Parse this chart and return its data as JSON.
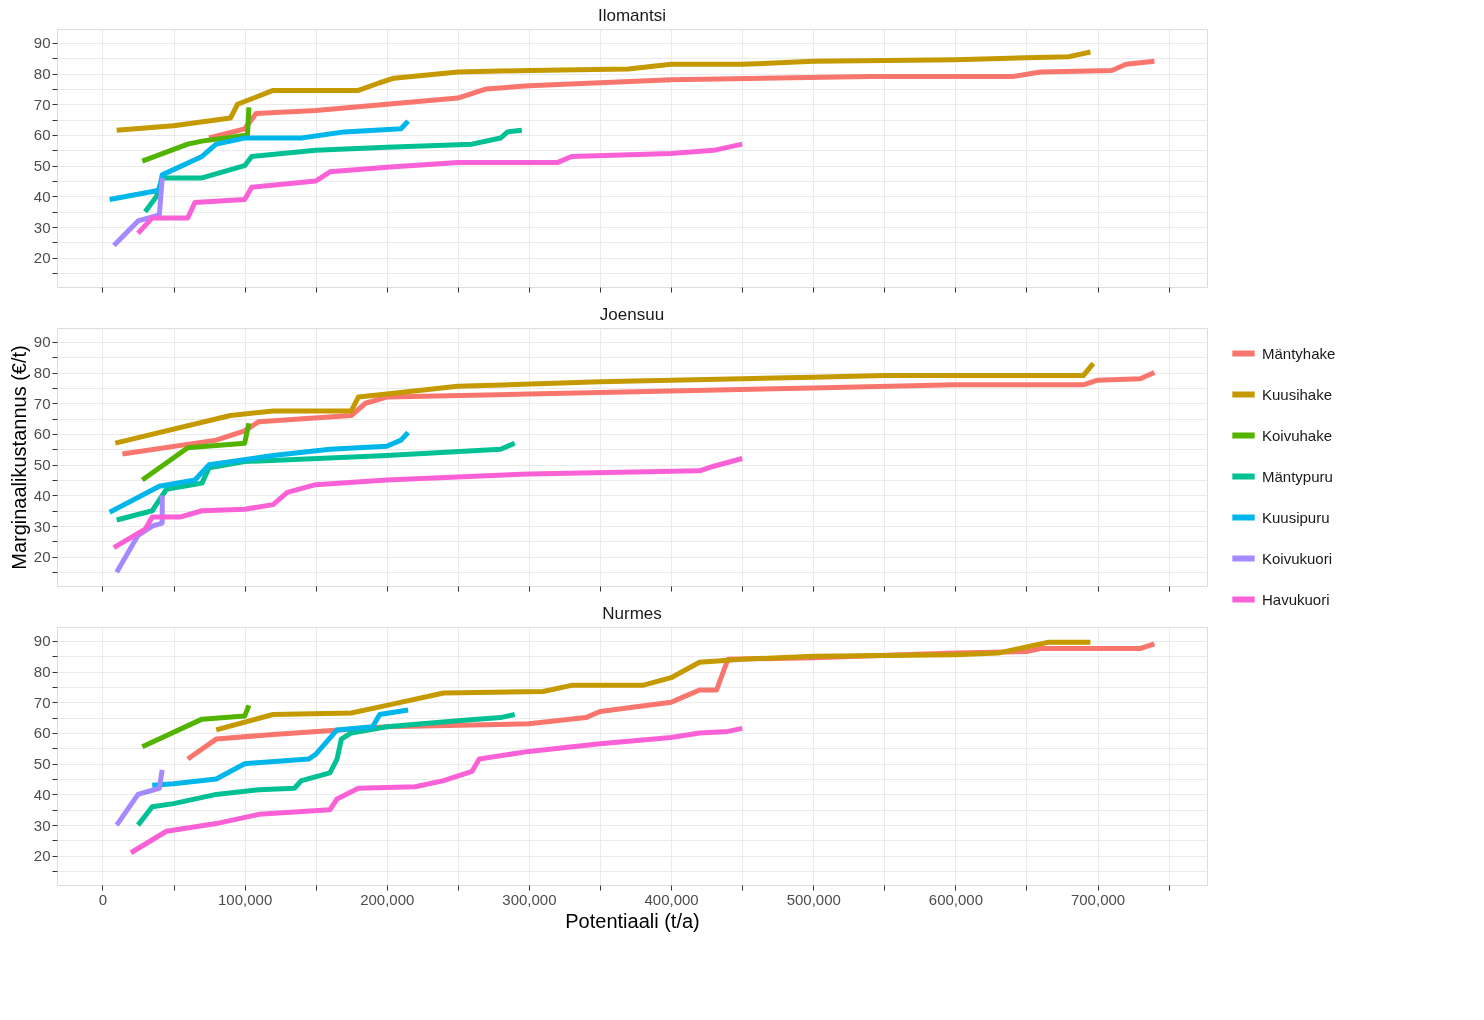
{
  "chart_data": [
    {
      "type": "line",
      "title": "Ilomantsi",
      "tick_labels": "y",
      "grid": true,
      "legend": "right",
      "line_style": "solid",
      "xlim": [
        -32000,
        777000
      ],
      "ylim": [
        10.5,
        94.5
      ],
      "xticks": [
        0,
        50000,
        100000,
        150000,
        200000,
        250000,
        300000,
        350000,
        400000,
        450000,
        500000,
        550000,
        600000,
        650000,
        700000,
        750000
      ],
      "yticks": [
        {
          "value": 15,
          "label": null
        },
        20,
        {
          "value": 25,
          "label": null
        },
        30,
        {
          "value": 35,
          "label": null
        },
        40,
        {
          "value": 45,
          "label": null
        },
        50,
        {
          "value": 55,
          "label": null
        },
        60,
        {
          "value": 65,
          "label": null
        },
        70,
        {
          "value": 75,
          "label": null
        },
        80,
        {
          "value": 85,
          "label": null
        },
        90
      ],
      "series": [
        {
          "name": "Mäntyhake",
          "color": "#f8766d",
          "x": [
            75000,
            100000,
            108000,
            150000,
            200000,
            250000,
            270000,
            300000,
            400000,
            540000,
            640000,
            660000,
            710000,
            720000,
            740000
          ],
          "values": [
            59,
            62,
            67,
            68,
            70,
            72,
            75,
            76,
            78,
            79,
            79,
            80.5,
            81,
            83,
            84
          ]
        },
        {
          "name": "Kuusihake",
          "color": "#c49a00",
          "x": [
            10000,
            50000,
            90000,
            95000,
            120000,
            180000,
            195000,
            205000,
            250000,
            300000,
            370000,
            400000,
            450000,
            500000,
            600000,
            680000,
            695000
          ],
          "values": [
            61.5,
            63,
            65.5,
            70,
            74.5,
            74.5,
            77,
            78.5,
            80.5,
            81,
            81.5,
            83,
            83,
            84,
            84.5,
            85.5,
            87
          ]
        },
        {
          "name": "Koivuhake",
          "color": "#53b400",
          "x": [
            28000,
            60000,
            70000,
            102000,
            103000
          ],
          "values": [
            51.5,
            57,
            58,
            60,
            69
          ]
        },
        {
          "name": "Mäntypuru",
          "color": "#00c094",
          "x": [
            30000,
            38000,
            42000,
            70000,
            100000,
            105000,
            150000,
            200000,
            260000,
            280000,
            285000,
            295000
          ],
          "values": [
            35,
            40,
            46,
            46,
            50,
            53,
            55,
            56,
            57,
            59,
            61,
            61.5
          ]
        },
        {
          "name": "Kuusipuru",
          "color": "#00b6eb",
          "x": [
            5000,
            40000,
            42000,
            70000,
            80000,
            100000,
            140000,
            170000,
            210000,
            215000
          ],
          "values": [
            39,
            42,
            47,
            53,
            57,
            59,
            59,
            61,
            62,
            64.5
          ]
        },
        {
          "name": "Koivukuori",
          "color": "#a58aff",
          "x": [
            8000,
            25000,
            40000,
            42000
          ],
          "values": [
            24,
            32,
            34,
            46
          ]
        },
        {
          "name": "Havukuori",
          "color": "#fb61d7",
          "x": [
            25000,
            35000,
            60000,
            65000,
            100000,
            105000,
            150000,
            160000,
            200000,
            250000,
            320000,
            330000,
            400000,
            430000,
            450000
          ],
          "values": [
            28,
            33,
            33,
            38,
            39,
            43,
            45,
            48,
            49.5,
            51,
            51,
            53,
            54,
            55,
            57
          ]
        }
      ]
    },
    {
      "type": "line",
      "title": "Joensuu",
      "ylabel": "Marginaalikustannus (€/t)",
      "tick_labels": "y",
      "grid": true,
      "line_style": "solid",
      "xlim": [
        -32000,
        777000
      ],
      "ylim": [
        10.5,
        94.5
      ],
      "xticks": [
        0,
        50000,
        100000,
        150000,
        200000,
        250000,
        300000,
        350000,
        400000,
        450000,
        500000,
        550000,
        600000,
        650000,
        700000,
        750000
      ],
      "yticks": [
        {
          "value": 15,
          "label": null
        },
        20,
        {
          "value": 25,
          "label": null
        },
        30,
        {
          "value": 35,
          "label": null
        },
        40,
        {
          "value": 45,
          "label": null
        },
        50,
        {
          "value": 55,
          "label": null
        },
        60,
        {
          "value": 65,
          "label": null
        },
        70,
        {
          "value": 75,
          "label": null
        },
        80,
        {
          "value": 85,
          "label": null
        },
        90
      ],
      "series": [
        {
          "color": "#f8766d",
          "x": [
            14000,
            80000,
            100000,
            110000,
            175000,
            185000,
            200000,
            300000,
            400000,
            500000,
            600000,
            690000,
            700000,
            730000,
            740000
          ],
          "values": [
            53.5,
            58,
            61,
            64,
            66,
            70,
            72,
            73,
            74,
            75,
            76,
            76,
            77.5,
            78,
            80
          ]
        },
        {
          "color": "#c49a00",
          "x": [
            9000,
            90000,
            120000,
            175000,
            180000,
            200000,
            250000,
            350000,
            400000,
            450000,
            500000,
            550000,
            690000,
            697000
          ],
          "values": [
            57,
            66,
            67.5,
            67.5,
            72,
            73,
            75.5,
            77,
            77.5,
            78,
            78.5,
            79,
            79,
            83
          ]
        },
        {
          "color": "#53b400",
          "x": [
            28000,
            60000,
            100000,
            103000
          ],
          "values": [
            45,
            55.5,
            57,
            63.5
          ]
        },
        {
          "color": "#00c094",
          "x": [
            10000,
            35000,
            45000,
            70000,
            75000,
            100000,
            200000,
            280000,
            290000
          ],
          "values": [
            32,
            35,
            42,
            44,
            49,
            51,
            53,
            55,
            57
          ]
        },
        {
          "color": "#00b6eb",
          "x": [
            5000,
            40000,
            65000,
            75000,
            120000,
            160000,
            200000,
            210000,
            215000
          ],
          "values": [
            34.5,
            43,
            45,
            50,
            53,
            55,
            56,
            58,
            60.5
          ]
        },
        {
          "color": "#a58aff",
          "x": [
            10000,
            25000,
            35000,
            42000,
            42000
          ],
          "values": [
            15,
            27,
            30,
            31,
            40
          ]
        },
        {
          "color": "#fb61d7",
          "x": [
            8000,
            30000,
            35000,
            55000,
            70000,
            100000,
            120000,
            130000,
            150000,
            200000,
            300000,
            420000,
            430000,
            450000
          ],
          "values": [
            23,
            29,
            33,
            33,
            35,
            35.5,
            37,
            41,
            43.5,
            45,
            47,
            48,
            49.5,
            52
          ]
        }
      ]
    },
    {
      "type": "line",
      "title": "Nurmes",
      "xlabel": "Potentiaali (t/a)",
      "grid": true,
      "line_style": "solid",
      "xlim": [
        -32000,
        777000
      ],
      "ylim": [
        10.5,
        94.5
      ],
      "xticks": [
        0,
        {
          "value": 50000,
          "label": null
        },
        {
          "value": 100000,
          "label": "100,000"
        },
        {
          "value": 150000,
          "label": null
        },
        {
          "value": 200000,
          "label": "200,000"
        },
        {
          "value": 250000,
          "label": null
        },
        {
          "value": 300000,
          "label": "300,000"
        },
        {
          "value": 350000,
          "label": null
        },
        {
          "value": 400000,
          "label": "400,000"
        },
        {
          "value": 450000,
          "label": null
        },
        {
          "value": 500000,
          "label": "500,000"
        },
        {
          "value": 550000,
          "label": null
        },
        {
          "value": 600000,
          "label": "600,000"
        },
        {
          "value": 650000,
          "label": null
        },
        {
          "value": 700000,
          "label": "700,000"
        },
        {
          "value": 750000,
          "label": null
        }
      ],
      "yticks": [
        {
          "value": 15,
          "label": null
        },
        20,
        {
          "value": 25,
          "label": null
        },
        30,
        {
          "value": 35,
          "label": null
        },
        40,
        {
          "value": 45,
          "label": null
        },
        50,
        {
          "value": 55,
          "label": null
        },
        60,
        {
          "value": 65,
          "label": null
        },
        70,
        {
          "value": 75,
          "label": null
        },
        80,
        {
          "value": 85,
          "label": null
        },
        90
      ],
      "series": [
        {
          "color": "#f8766d",
          "x": [
            60000,
            80000,
            120000,
            200000,
            300000,
            340000,
            350000,
            400000,
            410000,
            420000,
            432000,
            440000,
            500000,
            600000,
            650000,
            660000,
            730000,
            740000
          ],
          "values": [
            51.5,
            58,
            59.5,
            62,
            63,
            65,
            67,
            70,
            72,
            74,
            74,
            84,
            84.5,
            86,
            86.5,
            87.5,
            87.5,
            89
          ]
        },
        {
          "color": "#c49a00",
          "x": [
            80000,
            120000,
            175000,
            200000,
            240000,
            310000,
            330000,
            380000,
            400000,
            420000,
            450000,
            500000,
            600000,
            630000,
            650000,
            665000,
            695000
          ],
          "values": [
            61,
            66,
            66.5,
            69,
            73,
            73.5,
            75.5,
            75.5,
            78,
            83,
            84,
            85,
            85.5,
            86,
            88,
            89.5,
            89.5
          ]
        },
        {
          "color": "#53b400",
          "x": [
            28000,
            70000,
            100000,
            103000
          ],
          "values": [
            55.5,
            64.5,
            65.5,
            69
          ]
        },
        {
          "color": "#00c094",
          "x": [
            25000,
            35000,
            50000,
            80000,
            110000,
            135000,
            140000,
            160000,
            165000,
            168000,
            175000,
            200000,
            250000,
            280000,
            290000
          ],
          "values": [
            30,
            36,
            37,
            40,
            41.5,
            42,
            44.5,
            47,
            51.5,
            58,
            60,
            62,
            64,
            65,
            66
          ]
        },
        {
          "color": "#00b6eb",
          "x": [
            35000,
            50000,
            80000,
            100000,
            145000,
            150000,
            165000,
            190000,
            195000,
            215000
          ],
          "values": [
            43,
            43.5,
            45,
            50,
            51.5,
            53,
            61,
            62,
            66,
            67.5
          ]
        },
        {
          "color": "#a58aff",
          "x": [
            10000,
            25000,
            40000,
            42000
          ],
          "values": [
            30,
            40,
            42,
            48
          ]
        },
        {
          "color": "#fb61d7",
          "x": [
            20000,
            45000,
            80000,
            110000,
            160000,
            165000,
            180000,
            220000,
            240000,
            260000,
            265000,
            300000,
            350000,
            400000,
            420000,
            440000,
            450000
          ],
          "values": [
            21,
            28,
            30.5,
            33.5,
            35,
            38.5,
            42,
            42.5,
            44.5,
            47.5,
            51.5,
            54,
            56.5,
            58.5,
            60,
            60.5,
            61.5
          ]
        }
      ]
    }
  ]
}
